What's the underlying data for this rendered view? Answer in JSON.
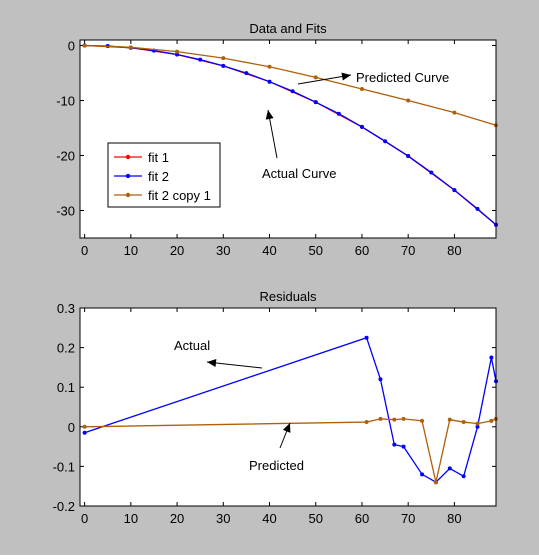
{
  "colors": {
    "figure_bg": "#c0c0c0",
    "axes_bg": "#ffffff",
    "fit1": "#ff0000",
    "fit2": "#0000ff",
    "fit2_copy": "#b0600c"
  },
  "chart_data": [
    {
      "type": "line",
      "title": "Data and Fits",
      "xlim": [
        -1,
        89
      ],
      "ylim": [
        -35,
        1
      ],
      "xticks": [
        "0",
        "10",
        "20",
        "30",
        "40",
        "50",
        "60",
        "70",
        "80"
      ],
      "xtick_values": [
        0,
        10,
        20,
        30,
        40,
        50,
        60,
        70,
        80
      ],
      "yticks": [
        "0",
        "-10",
        "-20",
        "-30"
      ],
      "ytick_values": [
        0,
        -10,
        -20,
        -30
      ],
      "grid": false,
      "legend": {
        "placement": "left",
        "entries": [
          "fit 1",
          "fit 2",
          "fit 2 copy 1"
        ]
      },
      "annotations": [
        {
          "text": "Predicted Curve"
        },
        {
          "text": "Actual Curve"
        }
      ],
      "series": [
        {
          "name": "fit 1",
          "x": [
            0,
            10,
            20,
            30,
            40,
            50,
            60,
            70,
            80,
            89
          ],
          "y": [
            0,
            -0.41,
            -1.64,
            -3.7,
            -6.58,
            -10.3,
            -14.8,
            -20.1,
            -26.3,
            -32.6
          ]
        },
        {
          "name": "fit 2",
          "x": [
            0,
            5,
            10,
            15,
            20,
            25,
            30,
            35,
            40,
            45,
            50,
            55,
            60,
            65,
            70,
            75,
            80,
            85,
            89
          ],
          "y": [
            0,
            -0.1,
            -0.41,
            -0.93,
            -1.64,
            -2.57,
            -3.7,
            -5.03,
            -6.58,
            -8.32,
            -10.3,
            -12.4,
            -14.8,
            -17.4,
            -20.1,
            -23.1,
            -26.3,
            -29.7,
            -32.6
          ]
        },
        {
          "name": "fit 2 copy 1",
          "x": [
            0,
            10,
            20,
            30,
            40,
            50,
            60,
            70,
            80,
            89
          ],
          "y": [
            0,
            -0.33,
            -1.12,
            -2.3,
            -3.86,
            -5.8,
            -7.9,
            -10.0,
            -12.2,
            -14.5
          ]
        }
      ]
    },
    {
      "type": "line",
      "title": "Residuals",
      "xlim": [
        -1,
        89
      ],
      "ylim": [
        -0.2,
        0.3
      ],
      "xticks": [
        "0",
        "10",
        "20",
        "30",
        "40",
        "50",
        "60",
        "70",
        "80"
      ],
      "xtick_values": [
        0,
        10,
        20,
        30,
        40,
        50,
        60,
        70,
        80
      ],
      "yticks": [
        "0.3",
        "0.2",
        "0.1",
        "0",
        "-0.1",
        "-0.2"
      ],
      "ytick_values": [
        0.3,
        0.2,
        0.1,
        0,
        -0.1,
        -0.2
      ],
      "grid": false,
      "annotations": [
        {
          "text": "Actual"
        },
        {
          "text": "Predicted"
        }
      ],
      "series": [
        {
          "name": "fit 2",
          "x": [
            0,
            61,
            64,
            67,
            69,
            73,
            76,
            79,
            82,
            85,
            88,
            89
          ],
          "y": [
            -0.015,
            0.225,
            0.12,
            -0.045,
            -0.05,
            -0.12,
            -0.14,
            -0.105,
            -0.125,
            0,
            0.175,
            0.115
          ]
        },
        {
          "name": "fit 2 copy 1",
          "x": [
            0,
            61,
            64,
            67,
            69,
            73,
            76,
            79,
            82,
            85,
            88,
            89
          ],
          "y": [
            0,
            0.012,
            0.02,
            0.018,
            0.02,
            0.015,
            -0.14,
            0.018,
            0.012,
            0.008,
            0.015,
            0.02
          ]
        }
      ]
    }
  ]
}
